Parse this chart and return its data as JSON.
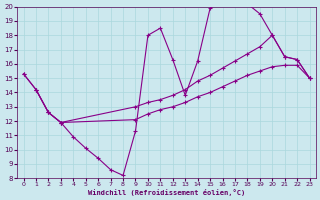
{
  "background_color": "#cce8ee",
  "line_color": "#880088",
  "grid_color": "#aad8dd",
  "xlabel": "Windchill (Refroidissement éolien,°C)",
  "xlabel_color": "#660066",
  "tick_color": "#550055",
  "xlim": [
    -0.5,
    23.5
  ],
  "ylim": [
    8,
    20
  ],
  "yticks": [
    8,
    9,
    10,
    11,
    12,
    13,
    14,
    15,
    16,
    17,
    18,
    19,
    20
  ],
  "xticks": [
    0,
    1,
    2,
    3,
    4,
    5,
    6,
    7,
    8,
    9,
    10,
    11,
    12,
    13,
    14,
    15,
    16,
    17,
    18,
    19,
    20,
    21,
    22,
    23
  ],
  "curve1_x": [
    0,
    1,
    2,
    3,
    4,
    5,
    6,
    7,
    8,
    9,
    10,
    11,
    12,
    13,
    14,
    15,
    16,
    17,
    18,
    19,
    20,
    21,
    22,
    23
  ],
  "curve1_y": [
    15.3,
    14.2,
    12.6,
    11.9,
    10.9,
    10.1,
    9.4,
    8.6,
    8.2,
    11.3,
    18.0,
    18.5,
    16.3,
    13.8,
    16.2,
    19.9,
    20.4,
    20.4,
    20.2,
    19.5,
    18.0,
    16.5,
    16.3,
    15.0
  ],
  "curve2_x": [
    1,
    2,
    3,
    9,
    10,
    11,
    12,
    13,
    14,
    15,
    16,
    17,
    18,
    19,
    20,
    21,
    22,
    23
  ],
  "curve2_y": [
    14.2,
    12.6,
    11.9,
    13.0,
    13.3,
    13.5,
    13.8,
    14.2,
    14.8,
    15.2,
    15.7,
    16.2,
    16.7,
    17.2,
    18.0,
    16.5,
    16.3,
    15.0
  ],
  "curve3_x": [
    0,
    1,
    2,
    3,
    9,
    10,
    11,
    12,
    13,
    14,
    15,
    16,
    17,
    18,
    19,
    20,
    21,
    22,
    23
  ],
  "curve3_y": [
    15.3,
    14.2,
    12.6,
    11.9,
    12.1,
    12.5,
    12.8,
    13.0,
    13.3,
    13.7,
    14.0,
    14.4,
    14.8,
    15.2,
    15.5,
    15.8,
    15.9,
    15.9,
    15.0
  ]
}
